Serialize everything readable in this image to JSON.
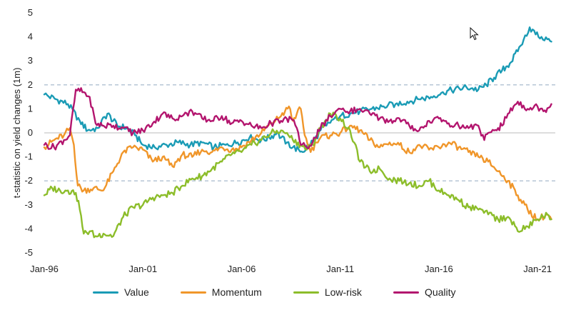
{
  "chart_data": {
    "type": "line",
    "ylabel": "t-statistic on yield changes (1m)",
    "xlabel": "",
    "xlim": [
      1996.0,
      2021.9
    ],
    "ylim": [
      -5,
      5
    ],
    "x_ticks": [
      {
        "label": "Jan-96",
        "x": 1996.0
      },
      {
        "label": "Jan-01",
        "x": 2001.0
      },
      {
        "label": "Jan-06",
        "x": 2006.0
      },
      {
        "label": "Jan-11",
        "x": 2011.0
      },
      {
        "label": "Jan-16",
        "x": 2016.0
      },
      {
        "label": "Jan-21",
        "x": 2021.0
      }
    ],
    "y_ticks": [
      {
        "label": "5",
        "y": 5
      },
      {
        "label": "4",
        "y": 4
      },
      {
        "label": "3",
        "y": 3
      },
      {
        "label": "2",
        "y": 2
      },
      {
        "label": "1",
        "y": 1
      },
      {
        "label": "0",
        "y": 0
      },
      {
        "label": "-1",
        "y": -1
      },
      {
        "label": "-2",
        "y": -2
      },
      {
        "label": "-3",
        "y": -3
      },
      {
        "label": "-4",
        "y": -4
      },
      {
        "label": "-5",
        "y": -5
      }
    ],
    "reference_lines": [
      2,
      -2
    ],
    "series": [
      {
        "name": "Value",
        "color": "#1a9bb5",
        "x": [
          1996.0,
          1996.6,
          1997.2,
          1997.8,
          1998.2,
          1998.7,
          1999.2,
          1999.7,
          2000.2,
          2000.6,
          2001.0,
          2001.6,
          2002.2,
          2002.8,
          2003.4,
          2004.0,
          2004.6,
          2005.2,
          2005.8,
          2006.4,
          2007.0,
          2007.4,
          2007.8,
          2008.0,
          2008.3,
          2008.6,
          2008.9,
          2009.1,
          2009.4,
          2009.7,
          2010.0,
          2010.3,
          2010.7,
          2011.0,
          2011.5,
          2012.0,
          2012.6,
          2013.2,
          2013.8,
          2014.4,
          2015.0,
          2015.6,
          2016.2,
          2016.8,
          2017.4,
          2018.0,
          2018.4,
          2018.8,
          2019.2,
          2019.6,
          2020.0,
          2020.3,
          2020.6,
          2020.9,
          2021.2,
          2021.5,
          2021.7
        ],
        "y": [
          1.6,
          1.4,
          1.2,
          0.5,
          0.1,
          0.2,
          0.8,
          0.3,
          0.2,
          -0.1,
          -0.5,
          -0.6,
          -0.5,
          -0.4,
          -0.5,
          -0.4,
          -0.6,
          -0.5,
          -0.4,
          -0.2,
          -0.3,
          -0.2,
          0.0,
          -0.2,
          -0.4,
          -0.6,
          -0.7,
          -0.8,
          -0.5,
          -0.3,
          0.1,
          0.3,
          0.6,
          0.7,
          0.8,
          0.9,
          1.0,
          1.1,
          1.2,
          1.3,
          1.4,
          1.5,
          1.7,
          1.8,
          1.9,
          1.8,
          2.0,
          2.3,
          2.6,
          2.9,
          3.4,
          3.9,
          4.4,
          4.1,
          4.0,
          3.9,
          3.8
        ]
      },
      {
        "name": "Momentum",
        "color": "#f0962a",
        "x": [
          1996.0,
          1996.5,
          1997.0,
          1997.3,
          1997.5,
          1997.7,
          1998.0,
          1998.5,
          1999.0,
          1999.5,
          2000.0,
          2000.5,
          2001.0,
          2001.5,
          2002.0,
          2002.5,
          2003.0,
          2003.5,
          2004.0,
          2004.5,
          2005.0,
          2005.5,
          2006.0,
          2006.5,
          2007.0,
          2007.5,
          2008.0,
          2008.2,
          2008.4,
          2008.6,
          2008.8,
          2009.0,
          2009.2,
          2009.5,
          2009.8,
          2010.0,
          2010.5,
          2011.0,
          2011.5,
          2012.0,
          2012.5,
          2013.0,
          2013.5,
          2014.0,
          2014.5,
          2015.0,
          2015.5,
          2016.0,
          2016.5,
          2017.0,
          2017.5,
          2018.0,
          2018.5,
          2019.0,
          2019.5,
          2020.0,
          2020.5,
          2021.0,
          2021.5,
          2021.7
        ],
        "y": [
          -0.6,
          -0.3,
          -0.1,
          0.2,
          -0.5,
          -2.2,
          -2.4,
          -2.3,
          -2.4,
          -1.6,
          -0.8,
          -0.6,
          -0.7,
          -1.2,
          -1.0,
          -1.4,
          -0.9,
          -1.0,
          -0.7,
          -0.8,
          -0.6,
          -0.7,
          -0.6,
          -0.3,
          0.0,
          0.4,
          0.7,
          0.9,
          1.1,
          0.5,
          0.8,
          1.0,
          -0.1,
          -0.8,
          -0.4,
          -0.2,
          -0.1,
          0.0,
          0.3,
          0.1,
          -0.3,
          -0.6,
          -0.4,
          -0.5,
          -0.8,
          -0.5,
          -0.7,
          -0.6,
          -0.4,
          -0.6,
          -0.8,
          -1.0,
          -1.2,
          -1.6,
          -2.0,
          -2.6,
          -3.2,
          -3.6,
          -3.4,
          -3.6
        ]
      },
      {
        "name": "Low-risk",
        "color": "#8cbd2a",
        "x": [
          1996.0,
          1996.4,
          1996.8,
          1997.2,
          1997.6,
          1997.8,
          1998.0,
          1998.3,
          1998.6,
          1999.0,
          1999.5,
          2000.0,
          2000.5,
          2001.0,
          2001.5,
          2002.0,
          2002.5,
          2003.0,
          2003.5,
          2004.0,
          2004.5,
          2005.0,
          2005.5,
          2006.0,
          2006.5,
          2007.0,
          2007.5,
          2008.0,
          2008.3,
          2008.6,
          2009.0,
          2009.3,
          2009.6,
          2010.0,
          2010.5,
          2011.0,
          2011.5,
          2012.0,
          2012.5,
          2013.0,
          2013.5,
          2014.0,
          2014.5,
          2015.0,
          2015.5,
          2016.0,
          2016.5,
          2017.0,
          2017.5,
          2018.0,
          2018.5,
          2019.0,
          2019.5,
          2020.0,
          2020.5,
          2021.0,
          2021.5,
          2021.7
        ],
        "y": [
          -2.6,
          -2.3,
          -2.4,
          -2.4,
          -2.5,
          -3.2,
          -4.2,
          -4.1,
          -4.3,
          -4.2,
          -4.3,
          -3.5,
          -3.1,
          -3.0,
          -2.7,
          -2.6,
          -2.5,
          -2.2,
          -1.9,
          -1.8,
          -1.5,
          -1.2,
          -0.9,
          -0.8,
          -0.5,
          -0.3,
          0.0,
          0.1,
          0.0,
          -0.3,
          -0.5,
          -0.7,
          -0.5,
          0.2,
          0.8,
          0.6,
          0.1,
          -1.2,
          -1.6,
          -1.5,
          -1.9,
          -2.0,
          -2.1,
          -2.2,
          -2.0,
          -2.4,
          -2.6,
          -2.8,
          -3.1,
          -3.2,
          -3.4,
          -3.6,
          -3.5,
          -4.1,
          -3.9,
          -3.6,
          -3.4,
          -3.6
        ]
      },
      {
        "name": "Quality",
        "color": "#b3156e",
        "x": [
          1996.0,
          1996.5,
          1997.0,
          1997.3,
          1997.6,
          1998.0,
          1998.3,
          1998.6,
          1999.0,
          1999.5,
          2000.0,
          2000.5,
          2001.0,
          2001.5,
          2002.0,
          2002.5,
          2003.0,
          2003.5,
          2004.0,
          2004.5,
          2005.0,
          2005.5,
          2006.0,
          2006.5,
          2007.0,
          2007.5,
          2008.0,
          2008.5,
          2008.8,
          2009.0,
          2009.3,
          2009.6,
          2010.0,
          2010.5,
          2011.0,
          2011.5,
          2012.0,
          2012.5,
          2013.0,
          2013.5,
          2014.0,
          2014.5,
          2015.0,
          2015.5,
          2016.0,
          2016.5,
          2017.0,
          2017.5,
          2018.0,
          2018.3,
          2018.5,
          2018.8,
          2019.2,
          2019.5,
          2020.0,
          2020.5,
          2021.0,
          2021.3,
          2021.7
        ],
        "y": [
          -0.5,
          -0.6,
          -0.3,
          -0.1,
          1.8,
          1.7,
          1.5,
          0.4,
          0.3,
          0.3,
          0.2,
          0.0,
          0.1,
          0.4,
          0.8,
          0.6,
          0.7,
          0.9,
          0.6,
          0.5,
          0.7,
          0.4,
          0.5,
          0.3,
          0.2,
          0.4,
          0.5,
          0.6,
          0.2,
          -0.5,
          -0.6,
          -0.4,
          0.2,
          0.7,
          1.0,
          0.9,
          1.0,
          0.8,
          0.6,
          0.5,
          0.6,
          0.3,
          0.1,
          0.5,
          0.6,
          0.4,
          0.3,
          0.2,
          0.3,
          -0.3,
          0.0,
          0.1,
          0.3,
          0.8,
          1.3,
          1.0,
          1.1,
          0.9,
          1.2
        ]
      }
    ]
  }
}
